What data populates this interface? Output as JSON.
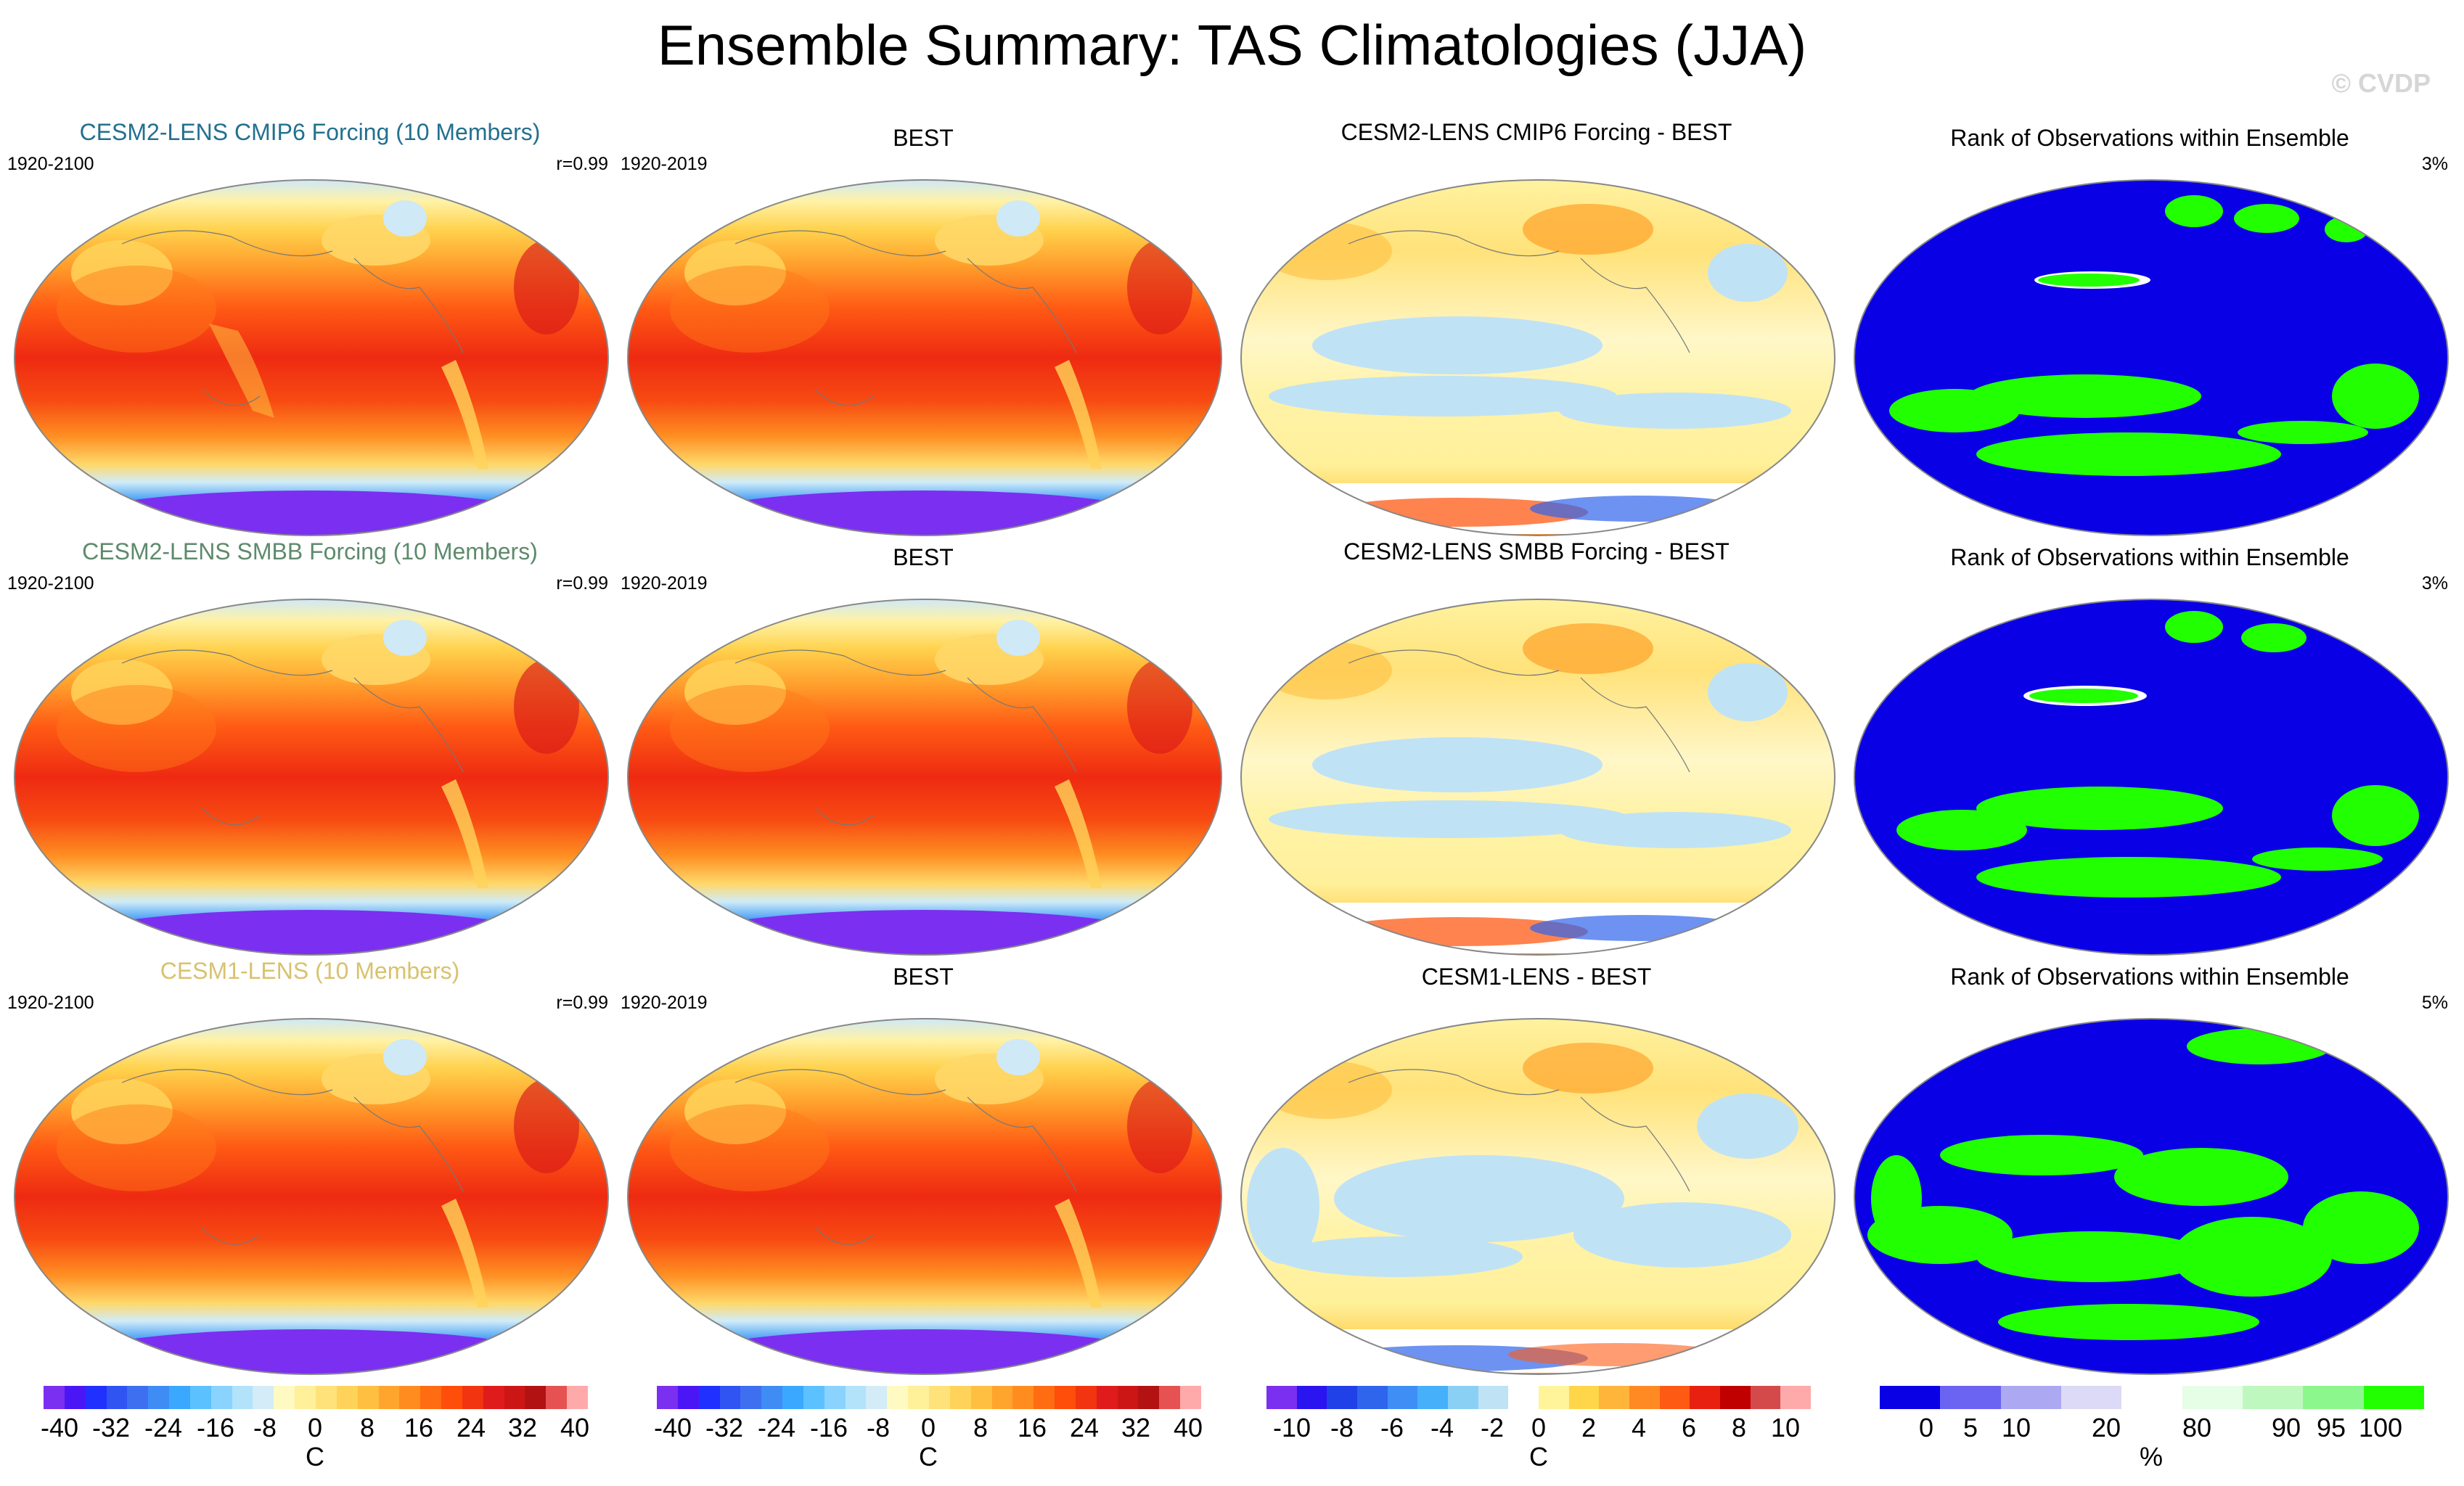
{
  "title": "Ensemble Summary: TAS Climatologies (JJA)",
  "copyright": "© CVDP",
  "colors": {
    "row_title_1": "#23708f",
    "row_title_2": "#5e8a6c",
    "row_title_3": "#d8c26e",
    "rank_low": "#0a00e6",
    "rank_high": "#22ff00"
  },
  "rows": [
    {
      "model_title": "CESM2-LENS CMIP6 Forcing (10 Members)",
      "model_period": "1920-2100",
      "correlation": "r=0.99",
      "obs_title": "BEST",
      "obs_period": "1920-2019",
      "diff_title": "CESM2-LENS CMIP6 Forcing - BEST",
      "rank_title": "Rank of Observations within Ensemble",
      "rank_pct": "3%"
    },
    {
      "model_title": "CESM2-LENS SMBB Forcing (10 Members)",
      "model_period": "1920-2100",
      "correlation": "r=0.99",
      "obs_title": "BEST",
      "obs_period": "1920-2019",
      "diff_title": "CESM2-LENS SMBB Forcing - BEST",
      "rank_title": "Rank of Observations within Ensemble",
      "rank_pct": "3%"
    },
    {
      "model_title": "CESM1-LENS (10 Members)",
      "model_period": "1920-2100",
      "correlation": "r=0.99",
      "obs_title": "BEST",
      "obs_period": "1920-2019",
      "diff_title": "CESM1-LENS - BEST",
      "rank_title": "Rank of Observations within Ensemble",
      "rank_pct": "5%"
    }
  ],
  "colorbars": {
    "clim": {
      "colors": [
        "#7b2ff0",
        "#4b16f5",
        "#2030ff",
        "#2f54f2",
        "#3d6ff0",
        "#3f8cf5",
        "#3aa8ff",
        "#5cc1ff",
        "#8ad3ff",
        "#b3e2fb",
        "#d3ecf8",
        "#fff9c2",
        "#fff09a",
        "#ffe27a",
        "#ffd35a",
        "#ffbf40",
        "#ffa52e",
        "#ff8c1f",
        "#ff6c12",
        "#ff4d0a",
        "#f23410",
        "#e01b1b",
        "#cc1616",
        "#b31212",
        "#e65252",
        "#ffaaaa"
      ],
      "labels": [
        "-40",
        "-32",
        "-24",
        "-16",
        "-8",
        "0",
        "8",
        "16",
        "24",
        "32",
        "40"
      ],
      "unit": "C"
    },
    "diff": {
      "colors": [
        "#7b2ff0",
        "#2a14f0",
        "#2040e8",
        "#2f64ec",
        "#3f8ef5",
        "#46b0fa",
        "#8ad0f5",
        "#c0e2f5",
        "#ffffff",
        "#fff49a",
        "#ffd54a",
        "#ffb43a",
        "#ff8a24",
        "#ff5a14",
        "#e82010",
        "#c00000",
        "#d44a4a",
        "#ffaaaa"
      ],
      "labels": [
        "-10",
        "-8",
        "-6",
        "-4",
        "-2",
        "0",
        "2",
        "4",
        "6",
        "8",
        "10"
      ],
      "unit": "C"
    },
    "rank": {
      "colors": [
        "#0a00e6",
        "#6b63f2",
        "#aca8f2",
        "#dcdaf6",
        "#ffffff",
        "#e6fde6",
        "#bff8bf",
        "#8cf78c",
        "#22ff00"
      ],
      "labels": [
        "0",
        "5",
        "10",
        "20",
        "80",
        "90",
        "95",
        "100"
      ],
      "unit": "%"
    }
  }
}
